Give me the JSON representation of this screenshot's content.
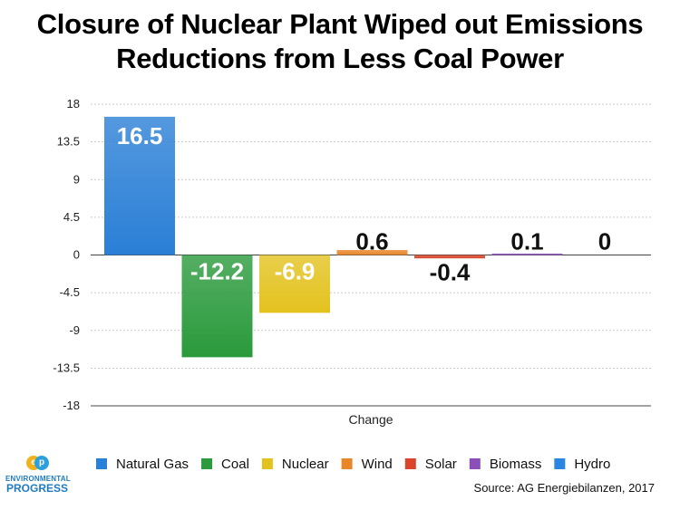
{
  "chart_data": {
    "type": "bar",
    "title_lines": [
      "Closure of Nuclear Plant Wiped out Emissions",
      "Reductions from Less Coal Power"
    ],
    "xlabel": "Change",
    "ylabel": "",
    "ylim": [
      -18,
      18
    ],
    "yticks": [
      "18",
      "13.5",
      "9",
      "4.5",
      "0",
      "-4.5",
      "-9",
      "-13.5",
      "-18"
    ],
    "ytick_values": [
      18,
      13.5,
      9,
      4.5,
      0,
      -4.5,
      -9,
      -13.5,
      -18
    ],
    "grid": true,
    "legend_position": "bottom",
    "series": [
      {
        "name": "Natural Gas",
        "value": 16.5,
        "label": "16.5",
        "color": "#2a7fd6"
      },
      {
        "name": "Coal",
        "value": -12.2,
        "label": "-12.2",
        "color": "#2a9a3c"
      },
      {
        "name": "Nuclear",
        "value": -6.9,
        "label": "-6.9",
        "color": "#e3c21e"
      },
      {
        "name": "Wind",
        "value": 0.6,
        "label": "0.6",
        "color": "#e8862a"
      },
      {
        "name": "Solar",
        "value": -0.4,
        "label": "-0.4",
        "color": "#d9452b"
      },
      {
        "name": "Biomass",
        "value": 0.1,
        "label": "0.1",
        "color": "#8a4fb8"
      },
      {
        "name": "Hydro",
        "value": 0,
        "label": "0",
        "color": "#2a86e0"
      }
    ]
  },
  "logo": {
    "line1": "ENVIRONMENTAL",
    "line2": "PROGRESS",
    "initials_a": "e",
    "initials_b": "p"
  },
  "source": "Source: AG Energiebilanzen, 2017"
}
